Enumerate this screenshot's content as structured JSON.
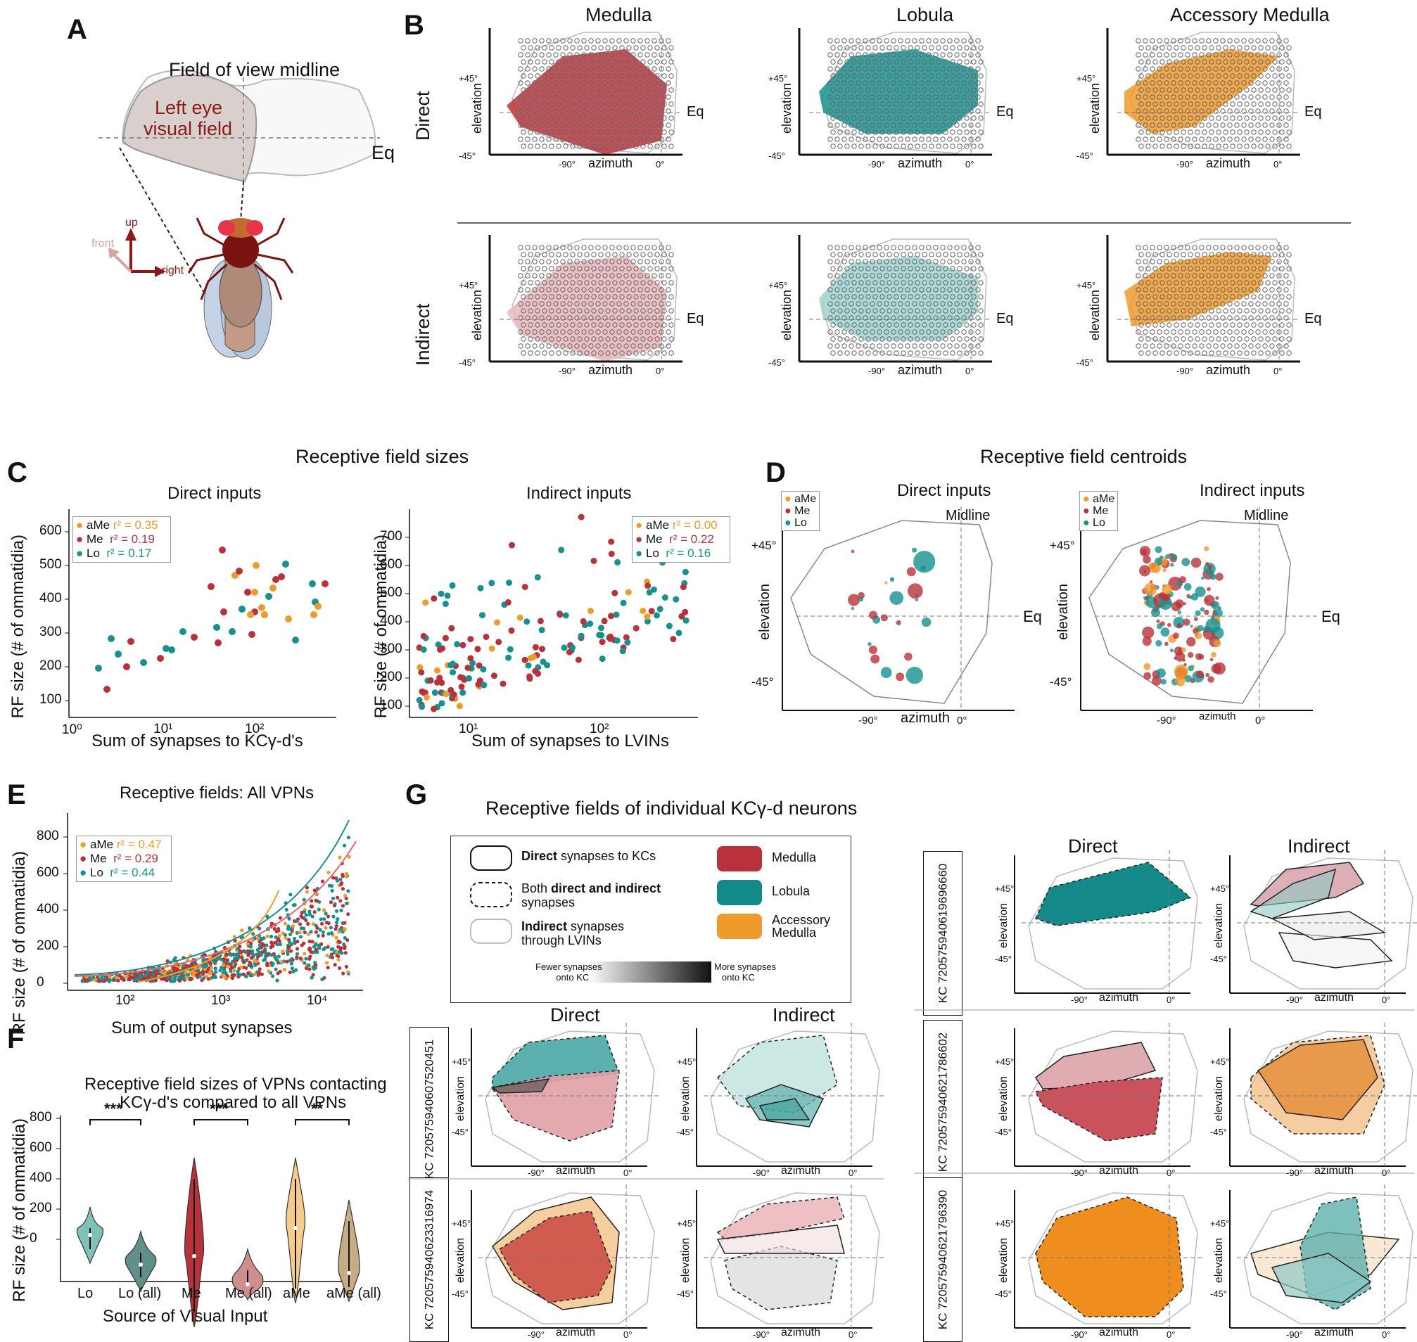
{
  "colors": {
    "medulla": "#b8323b",
    "lobula": "#16918f",
    "accessory": "#f09a2c",
    "direct_light_me": "#e7b3b7",
    "gray": "#777777"
  },
  "panel_labels": {
    "A": "A",
    "B": "B",
    "C": "C",
    "D": "D",
    "E": "E",
    "F": "F",
    "G": "G"
  },
  "panelA": {
    "title": "Field of view midline",
    "eye_label_1": "Left eye",
    "eye_label_2": "visual field",
    "eq": "Eq",
    "axes": {
      "up": "up",
      "front": "front",
      "right": "right"
    }
  },
  "panelB": {
    "columns": [
      "Medulla",
      "Lobula",
      "Accessory Medulla"
    ],
    "rows": [
      "Direct",
      "Indirect"
    ],
    "ylabel": "elevation",
    "xlabel": "azimuth",
    "eq": "Eq",
    "ticks": {
      "p45": "+45°",
      "m45": "-45°",
      "m90": "-90°",
      "zero": "0°"
    }
  },
  "panelC": {
    "section_title": "Receptive field sizes",
    "charts": [
      {
        "title": "Direct inputs",
        "xlabel": "Sum of synapses to KCγ-d's",
        "ylabel": "RF size (# of ommatidia)",
        "legend": [
          {
            "name": "aMe",
            "r2": "r² = 0.35"
          },
          {
            "name": "Me",
            "r2": "r² = 0.19"
          },
          {
            "name": "Lo",
            "r2": "r² = 0.17"
          }
        ],
        "yticks": [
          "100",
          "200",
          "300",
          "400",
          "500",
          "600"
        ],
        "xticks": [
          "10⁰",
          "10¹",
          "10²"
        ]
      },
      {
        "title": "Indirect inputs",
        "xlabel": "Sum of synapses to LVINs",
        "ylabel": "RF size (# of ommatidia)",
        "legend": [
          {
            "name": "aMe",
            "r2": "r² = 0.00"
          },
          {
            "name": "Me",
            "r2": "r² = 0.22"
          },
          {
            "name": "Lo",
            "r2": "r² = 0.16"
          }
        ],
        "yticks": [
          "100",
          "200",
          "300",
          "400",
          "500",
          "600",
          "700"
        ],
        "xticks": [
          "10¹",
          "10²"
        ]
      }
    ]
  },
  "panelD": {
    "section_title": "Receptive field centroids",
    "charts": [
      {
        "title": "Direct inputs",
        "midline": "Midline",
        "eq": "Eq",
        "ylabel": "elevation",
        "xlabel": "azimuth",
        "legend": [
          "aMe",
          "Me",
          "Lo"
        ]
      },
      {
        "title": "Indirect inputs",
        "midline": "Midline",
        "eq": "Eq",
        "ylabel": "elevation",
        "xlabel": "azimuth",
        "legend": [
          "aMe",
          "Me",
          "Lo"
        ]
      }
    ],
    "ticks": {
      "p45": "+45°",
      "m45": "-45°",
      "m90": "-90°",
      "zero": "0°"
    }
  },
  "panelE": {
    "title": "Receptive fields: All VPNs",
    "xlabel": "Sum of output synapses",
    "ylabel": "RF size (# of ommatidia)",
    "legend": [
      {
        "name": "aMe",
        "r2": "r² = 0.47"
      },
      {
        "name": "Me",
        "r2": "r² = 0.29"
      },
      {
        "name": "Lo",
        "r2": "r² = 0.44"
      }
    ],
    "yticks": [
      "0",
      "200",
      "400",
      "600",
      "800"
    ],
    "xticks": [
      "10²",
      "10³",
      "10⁴"
    ]
  },
  "panelF": {
    "title_1": "Receptive field sizes of VPNs contacting",
    "title_2": "KCγ-d's compared to all VPNs",
    "ylabel": "RF size (# of ommatidia)",
    "xlabel": "Source of Visual Input",
    "categories": [
      "Lo",
      "Lo (all)",
      "Me",
      "Me (all)",
      "aMe",
      "aMe (all)"
    ],
    "sig": [
      "***",
      "***",
      "**"
    ],
    "yticks": [
      "0",
      "200",
      "400",
      "600",
      "800"
    ]
  },
  "panelG": {
    "title": "Receptive fields of individual KCγ-d neurons",
    "legend": {
      "direct_b": "Direct",
      "direct_r": " synapses to KCs",
      "both_1": "Both ",
      "both_b": "direct and indirect",
      "both_2": "synapses",
      "ind_b": "Indirect",
      "ind_r": " synapses",
      "ind_2": "through LVINs",
      "medulla": "Medulla",
      "lobula": "Lobula",
      "accessory_1": "Accessory",
      "accessory_2": "Medulla",
      "fewer_1": "Fewer synapses",
      "fewer_2": "onto KC",
      "more_1": "More synapses",
      "more_2": "onto KC"
    },
    "col_direct": "Direct",
    "col_indirect": "Indirect",
    "kc_ids": [
      "KC 720575940619696660",
      "KC 720575940607520451",
      "KC 720575940621786602",
      "KC 720575940623316974",
      "KC 720575940621796390"
    ],
    "ylabel": "elevation",
    "xlabel": "azimuth",
    "ticks": {
      "p45": "+45°",
      "m45": "-45°",
      "m90": "-90°",
      "zero": "0°"
    }
  }
}
